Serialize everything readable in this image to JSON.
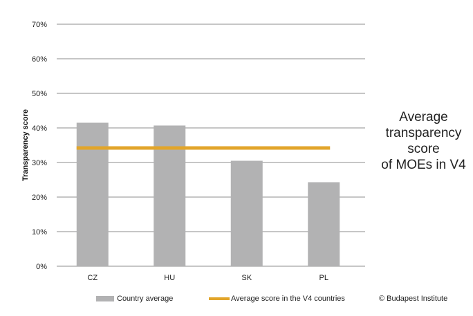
{
  "chart_data": {
    "type": "bar",
    "title": "Average transparency score of MOEs in V4",
    "title_lines": [
      "Average",
      "transparency",
      "score",
      "of MOEs in V4"
    ],
    "ylabel": "Transparency score",
    "xlabel": "",
    "categories": [
      "CZ",
      "HU",
      "SK",
      "PL"
    ],
    "series": [
      {
        "name": "Country average",
        "type": "bar",
        "color": "#b2b2b3",
        "values": [
          41.5,
          40.7,
          30.5,
          24.3
        ]
      },
      {
        "name": "Average score in the V4 countries",
        "type": "line",
        "color": "#e2a52a",
        "value": 34.2
      }
    ],
    "ylim": [
      0,
      70
    ],
    "yticks": [
      0,
      10,
      20,
      30,
      40,
      50,
      60,
      70
    ],
    "ytick_labels": [
      "0%",
      "10%",
      "20%",
      "30%",
      "40%",
      "50%",
      "60%",
      "70%"
    ],
    "grid": true,
    "legend_position": "bottom"
  },
  "credit": "© Budapest Institute"
}
